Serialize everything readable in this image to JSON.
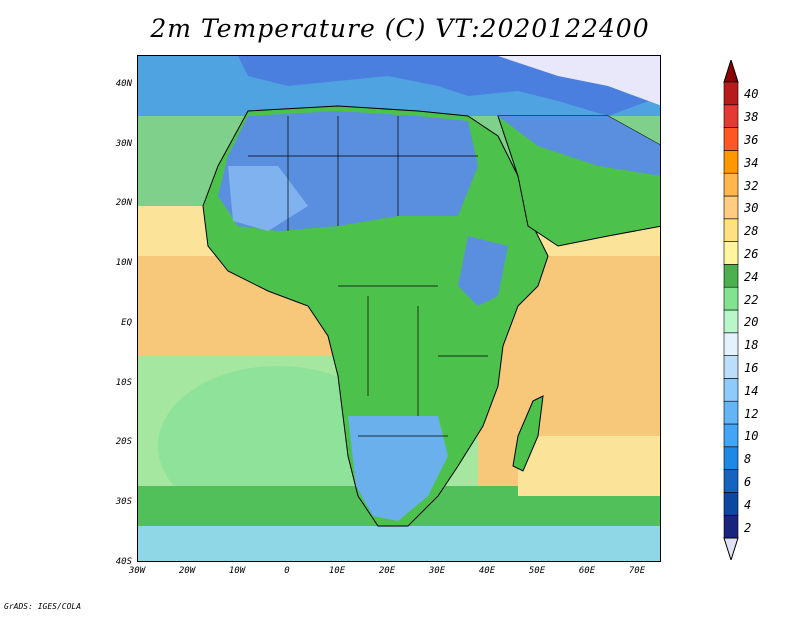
{
  "title": "2m Temperature (C) VT:2020122400",
  "credit": "GrADS: IGES/COLA",
  "lat_labels": [
    "40N",
    "30N",
    "20N",
    "10N",
    "EQ",
    "10S",
    "20S",
    "30S",
    "40S"
  ],
  "lon_labels": [
    "30W",
    "20W",
    "10W",
    "0",
    "10E",
    "20E",
    "30E",
    "40E",
    "50E",
    "60E",
    "70E"
  ],
  "colorbar": {
    "labels": [
      "2",
      "4",
      "6",
      "8",
      "10",
      "12",
      "14",
      "16",
      "18",
      "20",
      "22",
      "24",
      "26",
      "28",
      "30",
      "32",
      "34",
      "36",
      "38",
      "40"
    ],
    "colors": [
      "#1a237e",
      "#0d47a1",
      "#1565c0",
      "#1e88e5",
      "#42a5f5",
      "#64b5f6",
      "#90caf9",
      "#bbdefb",
      "#e3f2fd",
      "#b9f6ca",
      "#81e38f",
      "#4caf50",
      "#fff59d",
      "#ffe082",
      "#ffcc80",
      "#ffb74d",
      "#ff9800",
      "#ff5722",
      "#e53935",
      "#b71c1c"
    ],
    "below_color": "#e1e1f5",
    "above_color": "#8b0000"
  },
  "colors": {
    "ocean_warm": "#f8c87a",
    "ocean_mid": "#fbe49a",
    "ocean_cool": "#a5e6a0",
    "ocean_cold": "#8fd6e6",
    "land_green": "#4cc24c",
    "land_blue": "#5a8fe0",
    "land_cold": "#e8e8fa",
    "border": "#000000"
  }
}
